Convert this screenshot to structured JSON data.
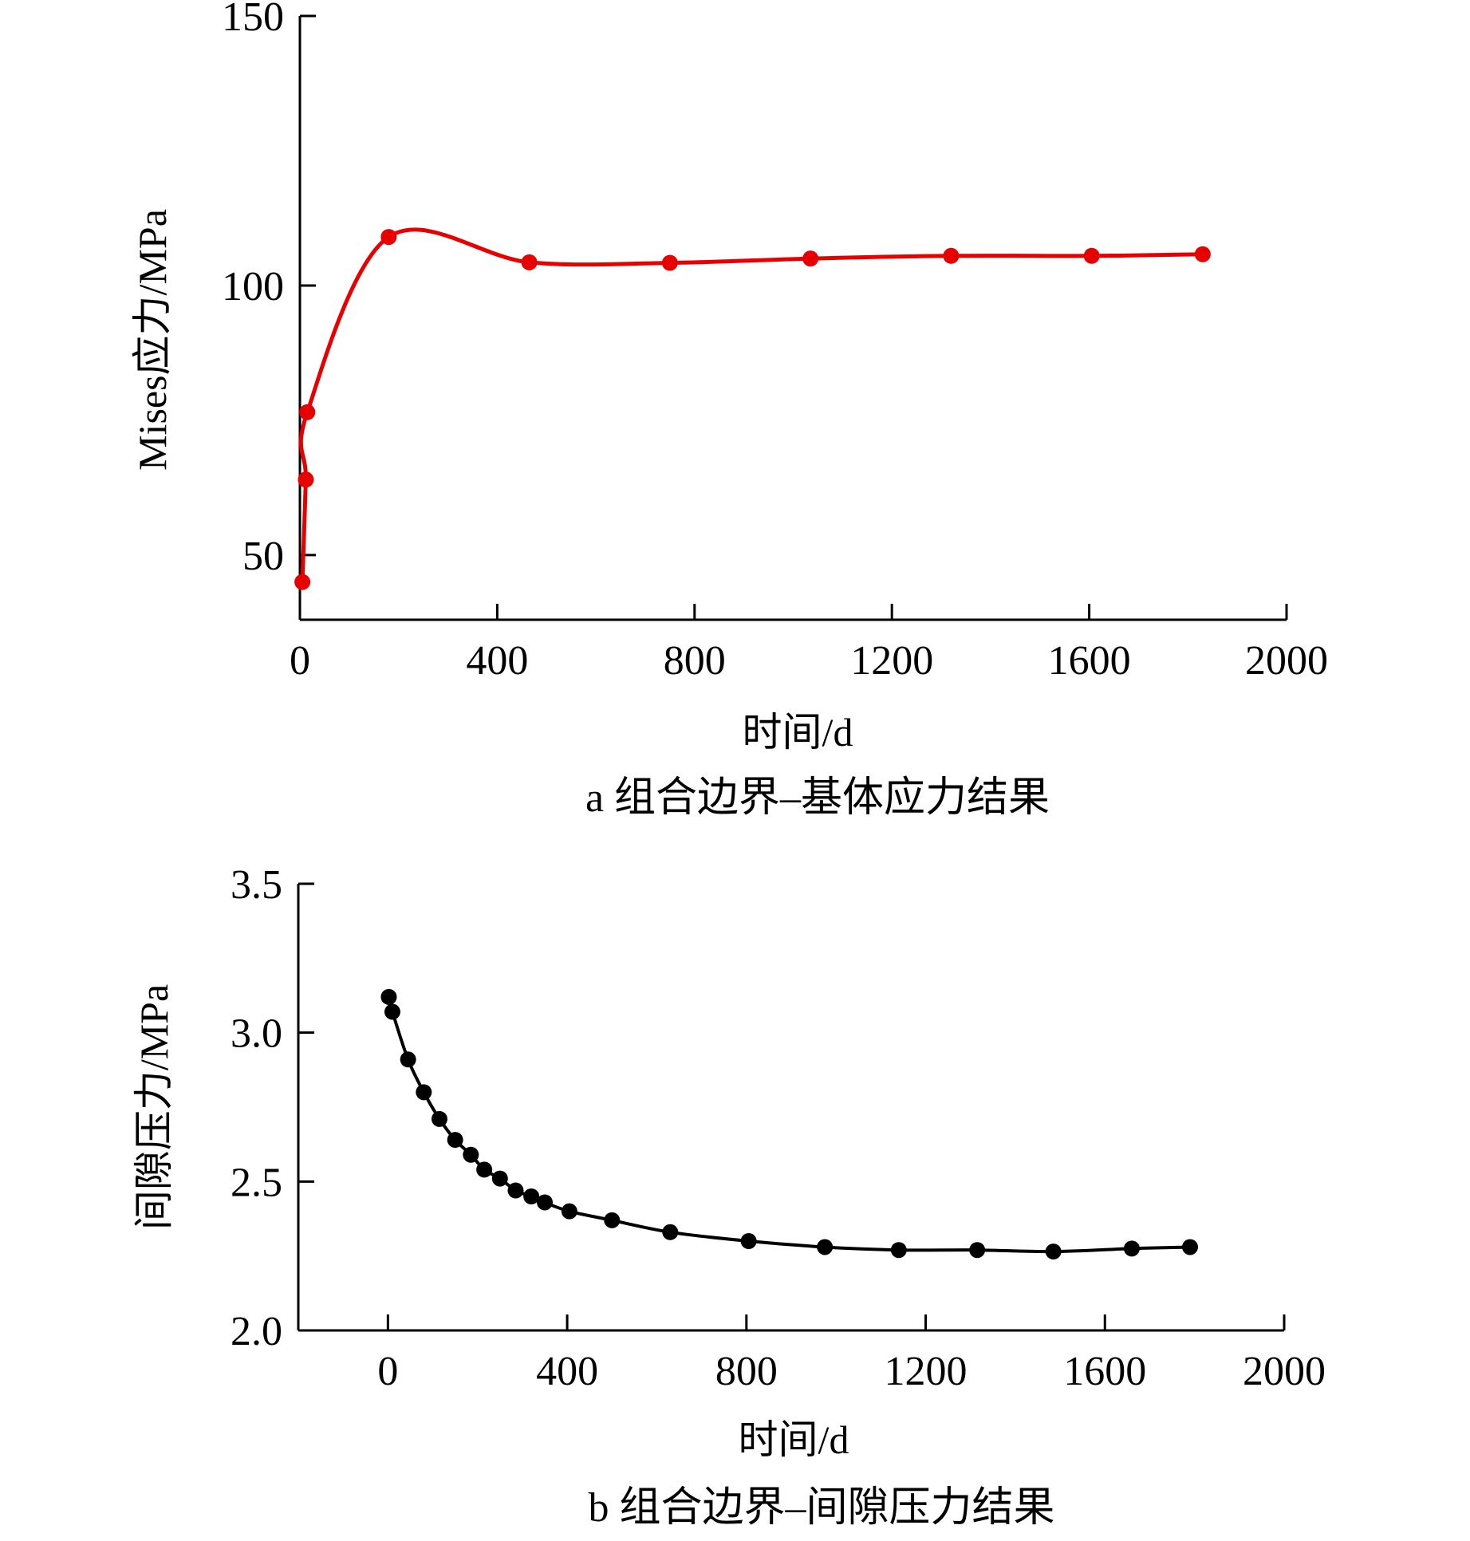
{
  "figure": {
    "charts": [
      {
        "id": "a",
        "caption": "a  组合边界–基体应力结果",
        "color": "#e60000"
      },
      {
        "id": "b",
        "caption": "b  组合边界–间隙压力结果",
        "color": "#000000"
      }
    ]
  },
  "chart_data": [
    {
      "type": "line",
      "title": "",
      "xlabel": "时间/d",
      "ylabel": "Mises应力/MPa",
      "xlim": [
        0,
        2000
      ],
      "ylim": [
        38,
        150
      ],
      "xticks": [
        0,
        400,
        800,
        1200,
        1600,
        2000
      ],
      "yticks": [
        50,
        100,
        150
      ],
      "grid": false,
      "legend": "none",
      "series": [
        {
          "color": "#e60000",
          "markers": true,
          "x": [
            5,
            12,
            15,
            180,
            465,
            750,
            1035,
            1320,
            1605,
            1830
          ],
          "y": [
            45,
            64,
            76.5,
            109,
            104.3,
            104.2,
            105,
            105.5,
            105.5,
            105.8
          ]
        }
      ]
    },
    {
      "type": "line",
      "title": "",
      "xlabel": "时间/d",
      "ylabel": "间隙压力/MPa",
      "xlim": [
        -200,
        2000
      ],
      "ylim": [
        2.0,
        3.5
      ],
      "xticks": [
        0,
        400,
        800,
        1200,
        1600,
        2000
      ],
      "yticks": [
        2.0,
        2.5,
        3.0,
        3.5
      ],
      "grid": false,
      "legend": "none",
      "series": [
        {
          "color": "#000000",
          "markers": true,
          "x": [
            2,
            10,
            45,
            80,
            115,
            150,
            185,
            215,
            250,
            285,
            320,
            350,
            405,
            500,
            630,
            805,
            975,
            1140,
            1315,
            1485,
            1660,
            1790
          ],
          "y": [
            3.12,
            3.07,
            2.91,
            2.8,
            2.71,
            2.64,
            2.59,
            2.54,
            2.51,
            2.47,
            2.45,
            2.43,
            2.4,
            2.37,
            2.33,
            2.3,
            2.28,
            2.27,
            2.27,
            2.265,
            2.275,
            2.28
          ]
        }
      ]
    }
  ]
}
